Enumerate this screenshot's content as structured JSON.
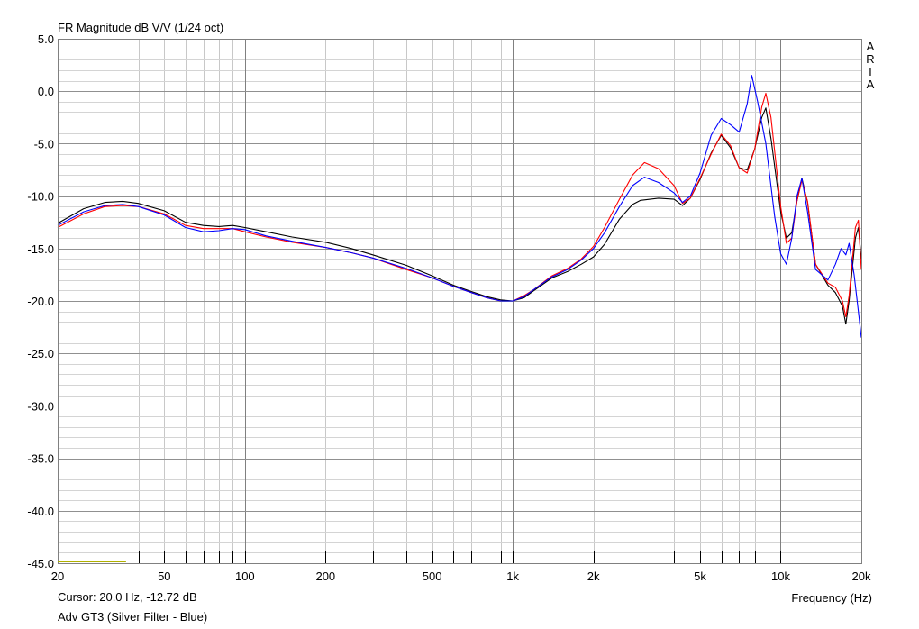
{
  "chart_data": {
    "type": "line",
    "title": "FR Magnitude dB V/V (1/24 oct)",
    "watermark": "ARTA",
    "xlabel": "Frequency (Hz)",
    "x_scale": "log",
    "xlim": [
      20,
      20000
    ],
    "ylim": [
      -45,
      5
    ],
    "grid": true,
    "x_tick_labels": [
      {
        "value": 20,
        "label": "20"
      },
      {
        "value": 50,
        "label": "50"
      },
      {
        "value": 100,
        "label": "100"
      },
      {
        "value": 200,
        "label": "200"
      },
      {
        "value": 500,
        "label": "500"
      },
      {
        "value": 1000,
        "label": "1k"
      },
      {
        "value": 2000,
        "label": "2k"
      },
      {
        "value": 5000,
        "label": "5k"
      },
      {
        "value": 10000,
        "label": "10k"
      },
      {
        "value": 20000,
        "label": "20k"
      }
    ],
    "y_tick_labels": [
      {
        "value": 5,
        "label": "5.0"
      },
      {
        "value": 0,
        "label": "0.0"
      },
      {
        "value": -5,
        "label": "-5.0"
      },
      {
        "value": -10,
        "label": "-10.0"
      },
      {
        "value": -15,
        "label": "-15.0"
      },
      {
        "value": -20,
        "label": "-20.0"
      },
      {
        "value": -25,
        "label": "-25.0"
      },
      {
        "value": -30,
        "label": "-30.0"
      },
      {
        "value": -35,
        "label": "-35.0"
      },
      {
        "value": -40,
        "label": "-40.0"
      },
      {
        "value": -45,
        "label": "-45.0"
      }
    ],
    "cursor_text": "Cursor: 20.0 Hz, -12.72 dB",
    "caption": "Adv GT3 (Silver Filter - Blue)",
    "cursor_marker": {
      "x_from": 20,
      "x_to": 36,
      "y": -45,
      "color": "#b0b000"
    },
    "series": [
      {
        "color": "#000000",
        "points": [
          [
            20,
            -12.6
          ],
          [
            25,
            -11.2
          ],
          [
            30,
            -10.6
          ],
          [
            35,
            -10.5
          ],
          [
            40,
            -10.7
          ],
          [
            50,
            -11.4
          ],
          [
            60,
            -12.5
          ],
          [
            70,
            -12.8
          ],
          [
            80,
            -12.9
          ],
          [
            90,
            -12.8
          ],
          [
            100,
            -13.0
          ],
          [
            120,
            -13.4
          ],
          [
            150,
            -13.9
          ],
          [
            200,
            -14.4
          ],
          [
            250,
            -15.0
          ],
          [
            300,
            -15.6
          ],
          [
            400,
            -16.6
          ],
          [
            500,
            -17.6
          ],
          [
            600,
            -18.5
          ],
          [
            700,
            -19.1
          ],
          [
            800,
            -19.6
          ],
          [
            900,
            -19.9
          ],
          [
            1000,
            -20.0
          ],
          [
            1100,
            -19.7
          ],
          [
            1200,
            -19.0
          ],
          [
            1400,
            -17.8
          ],
          [
            1600,
            -17.2
          ],
          [
            1800,
            -16.5
          ],
          [
            2000,
            -15.8
          ],
          [
            2200,
            -14.6
          ],
          [
            2500,
            -12.2
          ],
          [
            2800,
            -10.8
          ],
          [
            3000,
            -10.4
          ],
          [
            3500,
            -10.2
          ],
          [
            4000,
            -10.3
          ],
          [
            4300,
            -10.9
          ],
          [
            4600,
            -10.2
          ],
          [
            5000,
            -8.4
          ],
          [
            5500,
            -5.9
          ],
          [
            6000,
            -4.2
          ],
          [
            6500,
            -5.4
          ],
          [
            7000,
            -7.3
          ],
          [
            7500,
            -7.5
          ],
          [
            8000,
            -5.5
          ],
          [
            8500,
            -2.5
          ],
          [
            8800,
            -1.6
          ],
          [
            9200,
            -4.5
          ],
          [
            10000,
            -11.5
          ],
          [
            10500,
            -14.0
          ],
          [
            11000,
            -13.5
          ],
          [
            11500,
            -10.5
          ],
          [
            12000,
            -8.3
          ],
          [
            12600,
            -10.6
          ],
          [
            13500,
            -16.5
          ],
          [
            15000,
            -18.5
          ],
          [
            16000,
            -19.2
          ],
          [
            17000,
            -20.5
          ],
          [
            17500,
            -22.2
          ],
          [
            18000,
            -20.0
          ],
          [
            19000,
            -14.0
          ],
          [
            19500,
            -13.0
          ],
          [
            20000,
            -16.0
          ]
        ]
      },
      {
        "color": "#ff0000",
        "points": [
          [
            20,
            -13.0
          ],
          [
            25,
            -11.7
          ],
          [
            30,
            -11.0
          ],
          [
            35,
            -10.9
          ],
          [
            40,
            -11.0
          ],
          [
            50,
            -11.7
          ],
          [
            60,
            -12.8
          ],
          [
            70,
            -13.1
          ],
          [
            80,
            -13.1
          ],
          [
            90,
            -13.1
          ],
          [
            100,
            -13.4
          ],
          [
            120,
            -13.9
          ],
          [
            150,
            -14.4
          ],
          [
            200,
            -14.9
          ],
          [
            250,
            -15.4
          ],
          [
            300,
            -15.9
          ],
          [
            400,
            -17.0
          ],
          [
            500,
            -17.8
          ],
          [
            600,
            -18.6
          ],
          [
            700,
            -19.2
          ],
          [
            800,
            -19.7
          ],
          [
            900,
            -20.0
          ],
          [
            1000,
            -20.0
          ],
          [
            1100,
            -19.5
          ],
          [
            1200,
            -18.9
          ],
          [
            1400,
            -17.6
          ],
          [
            1600,
            -16.9
          ],
          [
            1800,
            -16.0
          ],
          [
            2000,
            -14.8
          ],
          [
            2200,
            -13.0
          ],
          [
            2500,
            -10.3
          ],
          [
            2800,
            -8.0
          ],
          [
            3100,
            -6.8
          ],
          [
            3500,
            -7.4
          ],
          [
            4000,
            -9.0
          ],
          [
            4300,
            -10.7
          ],
          [
            4600,
            -10.2
          ],
          [
            5000,
            -8.3
          ],
          [
            5500,
            -6.0
          ],
          [
            6000,
            -4.1
          ],
          [
            6500,
            -5.2
          ],
          [
            7000,
            -7.3
          ],
          [
            7500,
            -7.8
          ],
          [
            8000,
            -5.5
          ],
          [
            8500,
            -1.5
          ],
          [
            8800,
            -0.2
          ],
          [
            9200,
            -2.5
          ],
          [
            10000,
            -11.0
          ],
          [
            10500,
            -14.5
          ],
          [
            11000,
            -14.0
          ],
          [
            11500,
            -10.5
          ],
          [
            12000,
            -8.5
          ],
          [
            12600,
            -10.5
          ],
          [
            13500,
            -16.5
          ],
          [
            15000,
            -18.3
          ],
          [
            16000,
            -18.7
          ],
          [
            17000,
            -20.0
          ],
          [
            17500,
            -21.5
          ],
          [
            18000,
            -19.5
          ],
          [
            19000,
            -13.0
          ],
          [
            19500,
            -12.3
          ],
          [
            20000,
            -17.0
          ]
        ]
      },
      {
        "color": "#0000ff",
        "points": [
          [
            20,
            -12.8
          ],
          [
            25,
            -11.5
          ],
          [
            30,
            -10.9
          ],
          [
            35,
            -10.8
          ],
          [
            40,
            -11.0
          ],
          [
            50,
            -11.8
          ],
          [
            60,
            -13.0
          ],
          [
            70,
            -13.4
          ],
          [
            80,
            -13.3
          ],
          [
            90,
            -13.1
          ],
          [
            100,
            -13.2
          ],
          [
            120,
            -13.8
          ],
          [
            150,
            -14.3
          ],
          [
            200,
            -14.9
          ],
          [
            250,
            -15.4
          ],
          [
            300,
            -15.9
          ],
          [
            400,
            -16.9
          ],
          [
            500,
            -17.8
          ],
          [
            600,
            -18.6
          ],
          [
            700,
            -19.2
          ],
          [
            800,
            -19.7
          ],
          [
            900,
            -20.0
          ],
          [
            1000,
            -20.0
          ],
          [
            1100,
            -19.6
          ],
          [
            1200,
            -18.9
          ],
          [
            1400,
            -17.7
          ],
          [
            1600,
            -17.0
          ],
          [
            1800,
            -16.1
          ],
          [
            2000,
            -15.0
          ],
          [
            2200,
            -13.5
          ],
          [
            2500,
            -11.0
          ],
          [
            2800,
            -9.0
          ],
          [
            3100,
            -8.2
          ],
          [
            3500,
            -8.7
          ],
          [
            4000,
            -9.7
          ],
          [
            4300,
            -10.6
          ],
          [
            4600,
            -10.0
          ],
          [
            5000,
            -7.8
          ],
          [
            5500,
            -4.2
          ],
          [
            6000,
            -2.6
          ],
          [
            6500,
            -3.2
          ],
          [
            7000,
            -3.9
          ],
          [
            7500,
            -1.2
          ],
          [
            7800,
            1.5
          ],
          [
            8200,
            -1.0
          ],
          [
            8800,
            -5.0
          ],
          [
            9500,
            -12.0
          ],
          [
            10000,
            -15.5
          ],
          [
            10500,
            -16.5
          ],
          [
            11000,
            -14.0
          ],
          [
            11500,
            -10.0
          ],
          [
            12000,
            -8.3
          ],
          [
            12600,
            -11.5
          ],
          [
            13500,
            -17.0
          ],
          [
            15000,
            -18.0
          ],
          [
            16000,
            -16.5
          ],
          [
            16800,
            -15.0
          ],
          [
            17500,
            -15.6
          ],
          [
            18000,
            -14.5
          ],
          [
            18800,
            -17.5
          ],
          [
            19500,
            -21.0
          ],
          [
            20000,
            -23.5
          ]
        ]
      }
    ]
  }
}
